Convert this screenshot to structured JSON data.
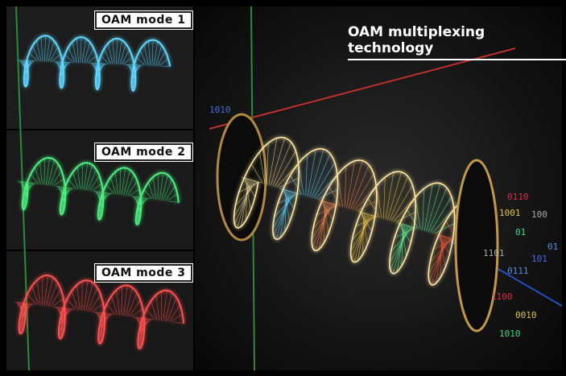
{
  "panels": [
    {
      "label": "OAM mode 1"
    },
    {
      "label": "OAM mode 2"
    },
    {
      "label": "OAM mode 3"
    }
  ],
  "main": {
    "title": "OAM multiplexing technology"
  },
  "binary": [
    "1010",
    "0110",
    "1001",
    "01",
    "1101",
    "0111",
    "101",
    "1100",
    "0010",
    "1010",
    "100",
    "01"
  ]
}
